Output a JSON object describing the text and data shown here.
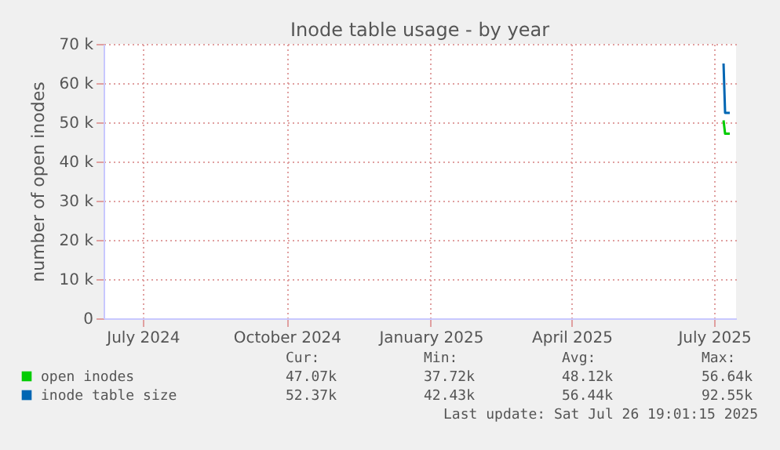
{
  "chart_data": {
    "type": "line",
    "title": "Inode table usage - by year",
    "ylabel": "number of open inodes",
    "series": [
      {
        "name": "open inodes",
        "color": "#00cc00",
        "x": [
          "2025-07-22",
          "2025-07-23",
          "2025-07-26"
        ],
        "values": [
          50500,
          47100,
          47100
        ]
      },
      {
        "name": "inode table size",
        "color": "#0066b3",
        "x": [
          "2025-07-22",
          "2025-07-23",
          "2025-07-26"
        ],
        "values": [
          65000,
          52400,
          52400
        ]
      }
    ],
    "xlim": [
      "2024-06-21",
      "2025-07-30"
    ],
    "xticks": [
      {
        "value": "2024-07-16",
        "label": "July 2024"
      },
      {
        "value": "2024-10-16",
        "label": "October 2024"
      },
      {
        "value": "2025-01-16",
        "label": "January 2025"
      },
      {
        "value": "2025-04-16",
        "label": "April 2025"
      },
      {
        "value": "2025-07-16",
        "label": "July 2025"
      }
    ],
    "ylim": [
      0,
      70000
    ],
    "yticks": [
      {
        "value": 0,
        "label": "0"
      },
      {
        "value": 10000,
        "label": "10 k"
      },
      {
        "value": 20000,
        "label": "20 k"
      },
      {
        "value": 30000,
        "label": "30 k"
      },
      {
        "value": 40000,
        "label": "40 k"
      },
      {
        "value": 50000,
        "label": "50 k"
      },
      {
        "value": 60000,
        "label": "60 k"
      },
      {
        "value": 70000,
        "label": "70 k"
      }
    ],
    "grid": true,
    "legend": "bottom",
    "annotations": [
      "Cur:",
      "Min:",
      "Avg:",
      "Max:",
      "47.07k",
      "37.72k",
      "48.12k",
      "56.64k",
      "52.37k",
      "42.43k",
      "56.44k",
      "92.55k",
      "Last update: Sat Jul 26 19:01:15 2025"
    ]
  }
}
